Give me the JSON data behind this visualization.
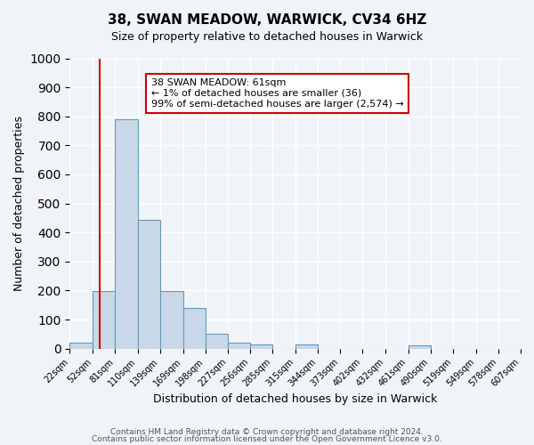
{
  "title": "38, SWAN MEADOW, WARWICK, CV34 6HZ",
  "subtitle": "Size of property relative to detached houses in Warwick",
  "xlabel": "Distribution of detached houses by size in Warwick",
  "ylabel": "Number of detached properties",
  "bar_color": "#c8d8e8",
  "bar_edge_color": "#6699bb",
  "background_color": "#f0f4f8",
  "grid_color": "#ffffff",
  "bin_labels": [
    "22sqm",
    "52sqm",
    "81sqm",
    "110sqm",
    "139sqm",
    "169sqm",
    "198sqm",
    "227sqm",
    "256sqm",
    "285sqm",
    "315sqm",
    "344sqm",
    "373sqm",
    "402sqm",
    "432sqm",
    "461sqm",
    "490sqm",
    "519sqm",
    "549sqm",
    "578sqm",
    "607sqm"
  ],
  "bar_heights": [
    20,
    197,
    790,
    445,
    197,
    140,
    50,
    20,
    13,
    0,
    13,
    0,
    0,
    0,
    0,
    10,
    0,
    0,
    0,
    0,
    0
  ],
  "bin_edges": [
    22,
    52,
    81,
    110,
    139,
    169,
    198,
    227,
    256,
    285,
    315,
    344,
    373,
    402,
    432,
    461,
    490,
    519,
    549,
    578,
    607
  ],
  "ylim": [
    0,
    1000
  ],
  "yticks": [
    0,
    100,
    200,
    300,
    400,
    500,
    600,
    700,
    800,
    900,
    1000
  ],
  "red_line_x": 61,
  "annotation_text": "38 SWAN MEADOW: 61sqm\n← 1% of detached houses are smaller (36)\n99% of semi-detached houses are larger (2,574) →",
  "annotation_box_color": "#ffffff",
  "annotation_border_color": "#cc0000",
  "footer_line1": "Contains HM Land Registry data © Crown copyright and database right 2024.",
  "footer_line2": "Contains public sector information licensed under the Open Government Licence v3.0."
}
